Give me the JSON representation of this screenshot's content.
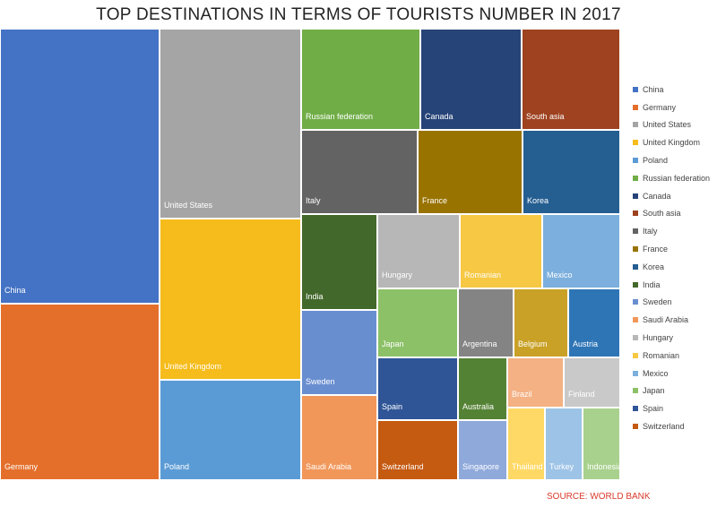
{
  "chart_data": {
    "type": "treemap",
    "title": "TOP DESTINATIONS IN TERMS OF TOURISTS NUMBER IN 2017",
    "source": "SOURCE: WORLD BANK",
    "values_note": "",
    "tiles": [
      {
        "label": "China",
        "color": "#4472c4",
        "value": 60.3
      },
      {
        "label": "Germany",
        "color": "#e46f2b",
        "value": 36.1
      },
      {
        "label": "United States",
        "color": "#a5a5a5",
        "value": 35.5
      },
      {
        "label": "United Kingdom",
        "color": "#f5bc1c",
        "value": 30.6
      },
      {
        "label": "Poland",
        "color": "#5b9bd5",
        "value": 18.4
      },
      {
        "label": "Russian federation",
        "color": "#70ad47",
        "value": 11.8
      },
      {
        "label": "Canada",
        "color": "#264478",
        "value": 10.3
      },
      {
        "label": "South asia",
        "color": "#9e4220",
        "value": 10.3
      },
      {
        "label": "Italy",
        "color": "#636363",
        "value": 9.8
      },
      {
        "label": "France",
        "color": "#997300",
        "value": 9.3
      },
      {
        "label": "Korea",
        "color": "#255e91",
        "value": 9.1
      },
      {
        "label": "India",
        "color": "#43682b",
        "value": 6.2
      },
      {
        "label": "Sweden",
        "color": "#698ed0",
        "value": 5.4
      },
      {
        "label": "Saudi Arabia",
        "color": "#f1975a",
        "value": 5.1
      },
      {
        "label": "Hungary",
        "color": "#b7b7b7",
        "value": 5.0
      },
      {
        "label": "Romanian",
        "color": "#f6c844",
        "value": 5.0
      },
      {
        "label": "Mexico",
        "color": "#7cafdd",
        "value": 4.8
      },
      {
        "label": "Japan",
        "color": "#8cc168",
        "value": 4.4
      },
      {
        "label": "Argentina",
        "color": "#848484",
        "value": 3.3
      },
      {
        "label": "Belgium",
        "color": "#c9a126",
        "value": 3.3
      },
      {
        "label": "Austria",
        "color": "#2e75b6",
        "value": 3.3
      },
      {
        "label": "Spain",
        "color": "#2f5597",
        "value": 4.1
      },
      {
        "label": "Australia",
        "color": "#548235",
        "value": 3.1
      },
      {
        "label": "Switzerland",
        "color": "#c55a11",
        "value": 3.5
      },
      {
        "label": "Singapore",
        "color": "#8fa9db",
        "value": 3.4
      },
      {
        "label": "Brazil",
        "color": "#f4b183",
        "value": 2.2
      },
      {
        "label": "Finland",
        "color": "#c9c9c9",
        "value": 2.2
      },
      {
        "label": "Thailand",
        "color": "#ffd966",
        "value": 2.5
      },
      {
        "label": "Turkey",
        "color": "#9dc3e6",
        "value": 2.5
      },
      {
        "label": "Indonesia",
        "color": "#a9d18e",
        "value": 2.3
      }
    ],
    "legend_position": "right",
    "legend": [
      {
        "label": "China",
        "color": "#4472c4"
      },
      {
        "label": "Germany",
        "color": "#e46f2b"
      },
      {
        "label": "United States",
        "color": "#a5a5a5"
      },
      {
        "label": "United Kingdom",
        "color": "#f5bc1c"
      },
      {
        "label": "Poland",
        "color": "#5b9bd5"
      },
      {
        "label": "Russian federation",
        "color": "#70ad47"
      },
      {
        "label": "Canada",
        "color": "#264478"
      },
      {
        "label": "South asia",
        "color": "#9e4220"
      },
      {
        "label": "Italy",
        "color": "#636363"
      },
      {
        "label": "France",
        "color": "#997300"
      },
      {
        "label": "Korea",
        "color": "#255e91"
      },
      {
        "label": "India",
        "color": "#43682b"
      },
      {
        "label": "Sweden",
        "color": "#698ed0"
      },
      {
        "label": "Saudi Arabia",
        "color": "#f1975a"
      },
      {
        "label": "Hungary",
        "color": "#b7b7b7"
      },
      {
        "label": "Romanian",
        "color": "#f6c844"
      },
      {
        "label": "Mexico",
        "color": "#7cafdd"
      },
      {
        "label": "Japan",
        "color": "#8cc168"
      },
      {
        "label": "Spain",
        "color": "#2f5597"
      },
      {
        "label": "Switzerland",
        "color": "#c55a11"
      }
    ]
  }
}
